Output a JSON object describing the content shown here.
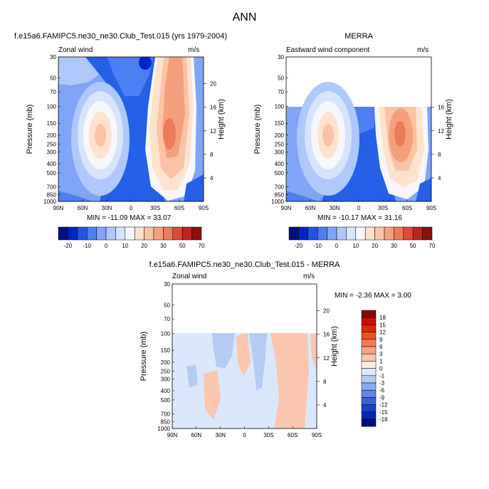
{
  "figure": {
    "title": "ANN"
  },
  "panels": [
    {
      "id": "model",
      "title": "f.e15a6.FAMIPC5.ne30_ne30.Club_Test.015 (yrs 1979-2004)",
      "left_label": "Zonal wind",
      "units": "m/s",
      "ylabel": "Pressure (mb)",
      "ylabel_right": "Height (km)",
      "stats": "MIN = -11.09  MAX = 33.07"
    },
    {
      "id": "obs",
      "title": "MERRA",
      "left_label": "Eastward wind component",
      "units": "m/s",
      "ylabel": "Pressure (mb)",
      "ylabel_right": "Height (km)",
      "stats": "MIN = -10.17  MAX = 31.16"
    },
    {
      "id": "diff",
      "title": "f.e15a6.FAMIPC5.ne30_ne30.Club_Test.015 - MERRA",
      "left_label": "Zonal wind",
      "units": "m/s",
      "ylabel": "Pressure (mb)",
      "ylabel_right": "Height (km)",
      "stats": "MIN = -2.36  MAX =  3.00"
    }
  ],
  "chart_data": [
    {
      "type": "heatmap",
      "title": "f.e15a6.FAMIPC5.ne30_ne30.Club_Test.015 (yrs 1979-2004)",
      "variable": "Zonal wind",
      "units": "m/s",
      "xlabel": "",
      "ylabel": "Pressure (mb)",
      "ylabel_right": "Height (km)",
      "x_ticks": [
        "90N",
        "60N",
        "30N",
        "0",
        "30S",
        "60S",
        "90S"
      ],
      "y_ticks": [
        30,
        50,
        70,
        100,
        150,
        200,
        250,
        300,
        400,
        500,
        700,
        850,
        1000
      ],
      "y_ticks_right": [
        4,
        8,
        12,
        16,
        20
      ],
      "ylim": [
        1000,
        30
      ],
      "y_scale": "log",
      "xlim": [
        90,
        -90
      ],
      "min": -11.09,
      "max": 33.07,
      "colorbar_levels": [
        -20,
        -10,
        0,
        10,
        20,
        30,
        50,
        70
      ],
      "features": [
        {
          "kind": "max",
          "lat": -35,
          "p": 200,
          "value": 33.07
        },
        {
          "kind": "max",
          "lat": 37,
          "p": 200,
          "value": 28
        },
        {
          "kind": "easterly",
          "lat": 0,
          "p": 60,
          "value": -11.09
        }
      ]
    },
    {
      "type": "heatmap",
      "title": "MERRA",
      "variable": "Eastward wind component",
      "units": "m/s",
      "ylabel": "Pressure (mb)",
      "ylabel_right": "Height (km)",
      "x_ticks": [
        "90N",
        "60N",
        "30N",
        "0",
        "30S",
        "60S",
        "90S"
      ],
      "y_ticks": [
        30,
        50,
        70,
        100,
        150,
        200,
        250,
        300,
        400,
        500,
        700,
        850,
        1000
      ],
      "y_ticks_right": [
        4,
        8,
        12,
        16
      ],
      "ylim": [
        1000,
        30
      ],
      "y_scale": "log",
      "xlim": [
        90,
        -90
      ],
      "data_top_p": 100,
      "min": -10.17,
      "max": 31.16,
      "colorbar_levels": [
        -20,
        -10,
        0,
        10,
        20,
        30,
        50,
        70
      ],
      "features": [
        {
          "kind": "max",
          "lat": -40,
          "p": 200,
          "value": 31.16
        },
        {
          "kind": "max",
          "lat": 35,
          "p": 200,
          "value": 27
        }
      ]
    },
    {
      "type": "heatmap",
      "title": "f.e15a6.FAMIPC5.ne30_ne30.Club_Test.015 - MERRA",
      "variable": "Zonal wind",
      "units": "m/s",
      "ylabel": "Pressure (mb)",
      "ylabel_right": "Height (km)",
      "x_ticks": [
        "90N",
        "60N",
        "30N",
        "0",
        "30S",
        "60S",
        "90S"
      ],
      "y_ticks": [
        30,
        50,
        70,
        100,
        150,
        200,
        250,
        300,
        400,
        500,
        700,
        850,
        1000
      ],
      "y_ticks_right": [
        4,
        8,
        12,
        16,
        20
      ],
      "ylim": [
        1000,
        30
      ],
      "y_scale": "log",
      "xlim": [
        90,
        -90
      ],
      "data_top_p": 100,
      "min": -2.36,
      "max": 3.0,
      "colorbar_levels": [
        -18,
        -15,
        -12,
        -9,
        -6,
        -3,
        -1,
        0,
        1,
        3,
        6,
        9,
        12,
        15,
        18
      ]
    }
  ],
  "colorbars": {
    "abs_labels": [
      "-20",
      "-10",
      "0",
      "10",
      "20",
      "30",
      "50",
      "70"
    ],
    "abs_colors": [
      "#000f80",
      "#0024c7",
      "#2255e6",
      "#4d7ff2",
      "#7fa5f7",
      "#aec8fa",
      "#d6e4fc",
      "#f7f7fb",
      "#fde2cd",
      "#fbc3a6",
      "#f5a07d",
      "#ec7b5a",
      "#db4b35",
      "#bf2220",
      "#8e0d0d"
    ],
    "diff_labels": [
      "18",
      "15",
      "12",
      "9",
      "6",
      "3",
      "1",
      "0",
      "-1",
      "-3",
      "-6",
      "-9",
      "-12",
      "-15",
      "-18"
    ],
    "diff_colors": [
      "#8c0000",
      "#c21200",
      "#e02a00",
      "#ee5226",
      "#f47a50",
      "#f8a283",
      "#fbc6ae",
      "#fdebdf",
      "#dbe8fb",
      "#b4cbf6",
      "#89a9ee",
      "#5f85e6",
      "#3463dd",
      "#1743cf",
      "#0625b8",
      "#000f80"
    ]
  },
  "colors": {
    "strong_easterly": "#2460e8",
    "easterly": "#4d7ff2",
    "weak_easterly": "#7fa5f7",
    "pale_blue": "#aec8fa",
    "very_pale_blue": "#d6e4fc",
    "near_zero": "#f7f7fb",
    "weak_westerly": "#fde2cd",
    "westerly": "#fbc3a6",
    "strong_westerly": "#f5a07d",
    "jet_core": "#ec7b5a",
    "diff_background": "#dbe8fb",
    "diff_neg": "#b4cbf6",
    "diff_pos": "#fbc6ae"
  }
}
